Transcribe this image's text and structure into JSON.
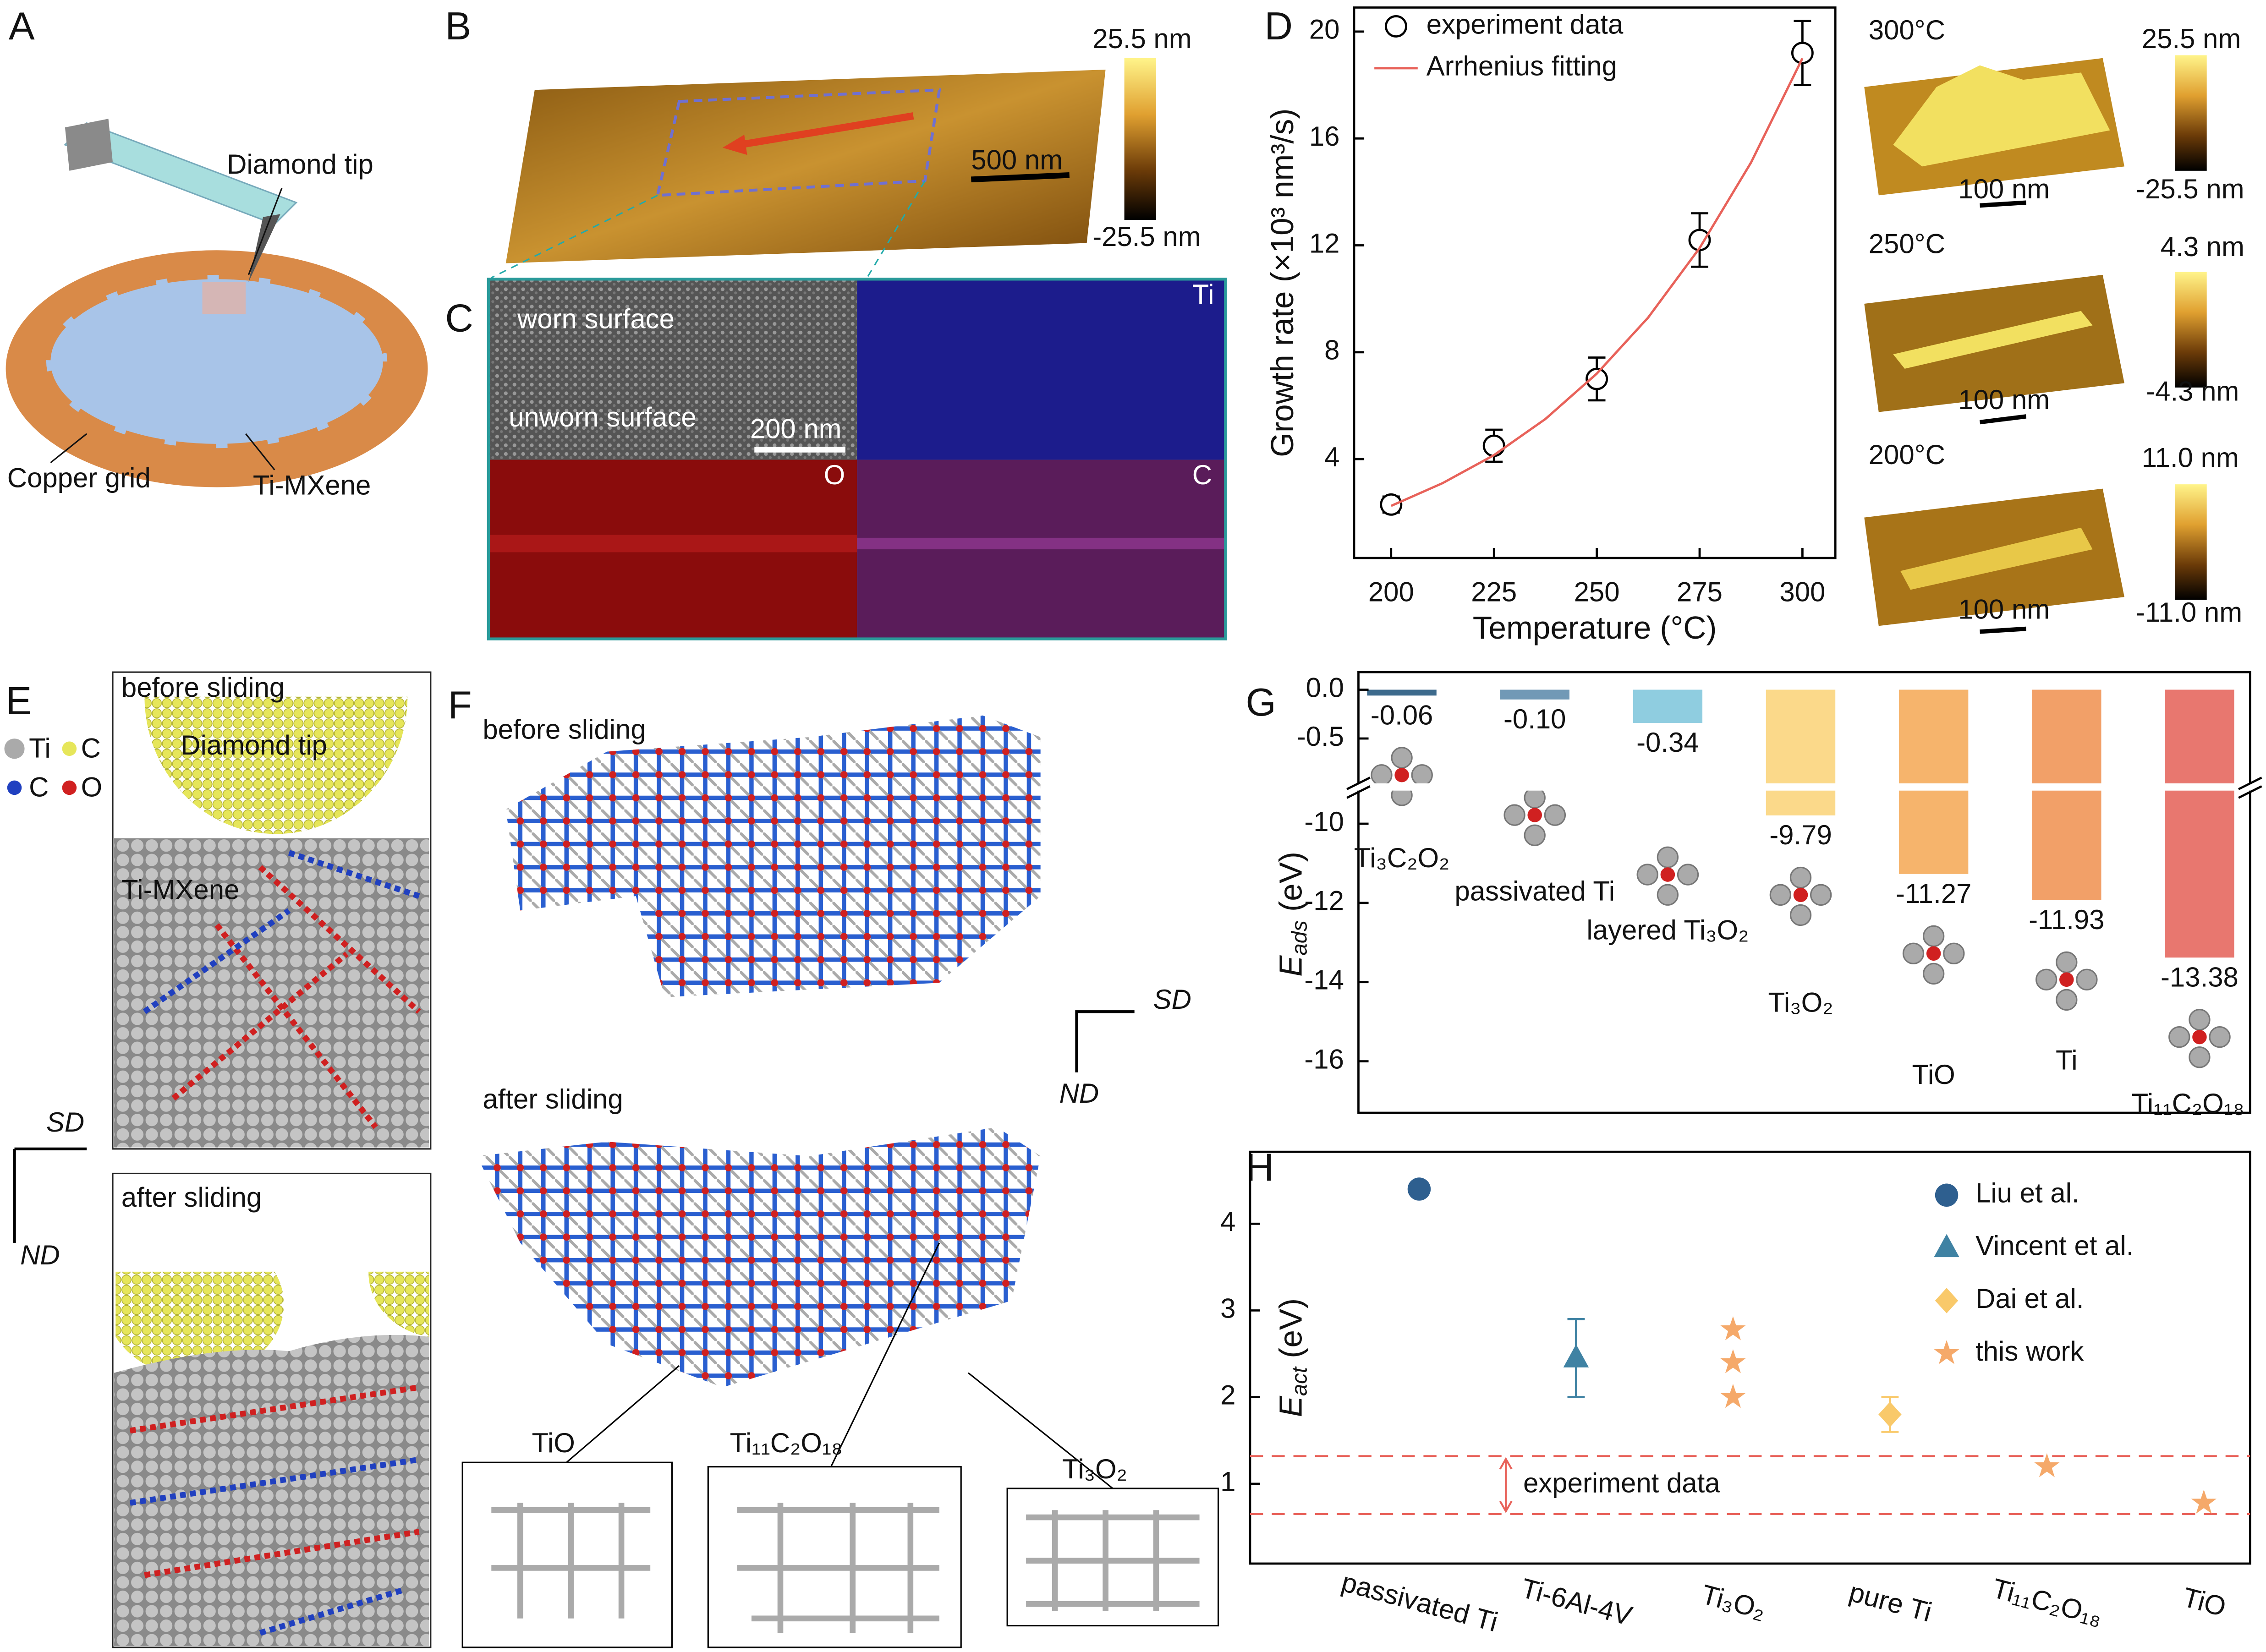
{
  "panel_labels": [
    "A",
    "B",
    "C",
    "D",
    "E",
    "F",
    "G",
    "H"
  ],
  "panel_a": {
    "tip": "Diamond tip",
    "grid": "Copper grid",
    "sample": "Ti-MXene"
  },
  "panel_b": {
    "colorbar_max": "25.5 nm",
    "colorbar_min": "-25.5 nm",
    "scale": "500 nm"
  },
  "panel_c": {
    "worn": "worn surface",
    "unworn": "unworn surface",
    "scale": "200 nm",
    "maps": [
      "Ti",
      "O",
      "C"
    ]
  },
  "panel_d_images": [
    {
      "temperature": "300°C",
      "max": "25.5 nm",
      "min": "-25.5 nm",
      "scale": "100 nm"
    },
    {
      "temperature": "250°C",
      "max": "4.3 nm",
      "min": "-4.3 nm",
      "scale": "100 nm"
    },
    {
      "temperature": "200°C",
      "max": "11.0 nm",
      "min": "-11.0 nm",
      "scale": "100 nm"
    }
  ],
  "panel_e": {
    "before": "before sliding",
    "tip": "Diamond tip",
    "legend": [
      "Ti",
      "C",
      "C",
      "O"
    ],
    "sample": "Ti-MXene",
    "sd": "SD",
    "nd": "ND",
    "after": "after sliding"
  },
  "panel_f": {
    "before": "before sliding",
    "sd": "SD",
    "nd": "ND",
    "after": "after sliding",
    "insets": [
      "TiO",
      "Ti₁₁C₂O₁₈",
      "Ti₃O₂"
    ]
  },
  "chart_data": [
    {
      "type": "scatter",
      "xlabel": "Temperature (°C)",
      "ylabel": "Growth rate (×10³ nm³/s)",
      "xlim": [
        191,
        308
      ],
      "ylim": [
        0.3,
        20.9
      ],
      "xticks": [
        200,
        225,
        250,
        275,
        300
      ],
      "yticks": [
        4,
        8,
        12,
        16,
        20
      ],
      "legend": "upper left",
      "series": [
        {
          "name": "experiment data",
          "type": "scatter",
          "color": "#000000",
          "x": [
            200,
            225,
            250,
            275,
            300
          ],
          "values": [
            2.3,
            4.5,
            7.0,
            12.2,
            19.2
          ],
          "errors": [
            0.3,
            0.6,
            0.8,
            1.0,
            1.2
          ]
        },
        {
          "name": "Arrhenius fitting",
          "type": "line",
          "color": "#e8625a",
          "x": [
            200,
            212.5,
            225,
            237.5,
            250,
            262.5,
            275,
            287.5,
            300
          ],
          "values": [
            2.25,
            3.1,
            4.15,
            5.5,
            7.2,
            9.3,
            11.9,
            15.1,
            19.0
          ]
        }
      ]
    },
    {
      "type": "bar",
      "ylabel": {
        "main": "E",
        "sub": "ads",
        "unit": " (eV)"
      },
      "categories": [
        "Ti₃C₂O₂",
        "passivated Ti",
        "layered Ti₃O₂",
        "Ti₃O₂",
        "TiO",
        "Ti",
        "Ti₁₁C₂O₁₈"
      ],
      "values": [
        -0.06,
        -0.1,
        -0.34,
        -9.79,
        -11.27,
        -11.93,
        -13.38
      ],
      "value_labels": [
        "-0.06",
        "-0.10",
        "-0.34",
        "-9.79",
        "-11.27",
        "-11.93",
        "-13.38"
      ],
      "colors": [
        "#3d6a8c",
        "#7199b6",
        "#8fcde0",
        "#fbd98a",
        "#f6b46c",
        "#f2a068",
        "#e8776f"
      ],
      "ylim": [
        -17.3,
        0.18
      ],
      "axis_break": [
        -9.2,
        -0.93
      ],
      "yticks": [
        {
          "value": 0,
          "label": "0.0"
        },
        -0.5,
        -10,
        -12,
        -14,
        -16
      ]
    },
    {
      "type": "scatter",
      "ylabel": {
        "main": "E",
        "sub": "act",
        "unit": " (eV)"
      },
      "categories": [
        "passivated Ti",
        "Ti-6Al-4V",
        "Ti₃O₂",
        "pure Ti",
        "Ti₁₁C₂O₁₈",
        "TiO"
      ],
      "ylim": [
        0.08,
        4.83
      ],
      "yticks": [
        1,
        2,
        3,
        4
      ],
      "legend": "upper right",
      "reference_lines": [
        1.32,
        0.65
      ],
      "annotation": "experiment data",
      "reference_color": "#e8625a",
      "series": [
        {
          "name": "Liu et al.",
          "marker": "circle",
          "color": "#2e5f8f",
          "x": [
            "passivated Ti"
          ],
          "values": [
            4.4
          ]
        },
        {
          "name": "Vincent et al.",
          "marker": "triangle",
          "color": "#3f82a3",
          "x": [
            "Ti-6Al-4V"
          ],
          "values": [
            2.45
          ],
          "errors": [
            0.45
          ]
        },
        {
          "name": "Dai et al.",
          "marker": "diamond",
          "color": "#f9c96a",
          "x": [
            "pure Ti"
          ],
          "values": [
            1.8
          ],
          "errors": [
            0.2
          ]
        },
        {
          "name": "this work",
          "marker": "star",
          "color": "#f5a96a",
          "x": [
            "Ti₃O₂",
            "Ti₃O₂",
            "Ti₃O₂",
            "Ti₁₁C₂O₁₈",
            "TiO"
          ],
          "values": [
            2.78,
            2.4,
            2.0,
            1.2,
            0.78
          ]
        }
      ]
    }
  ]
}
